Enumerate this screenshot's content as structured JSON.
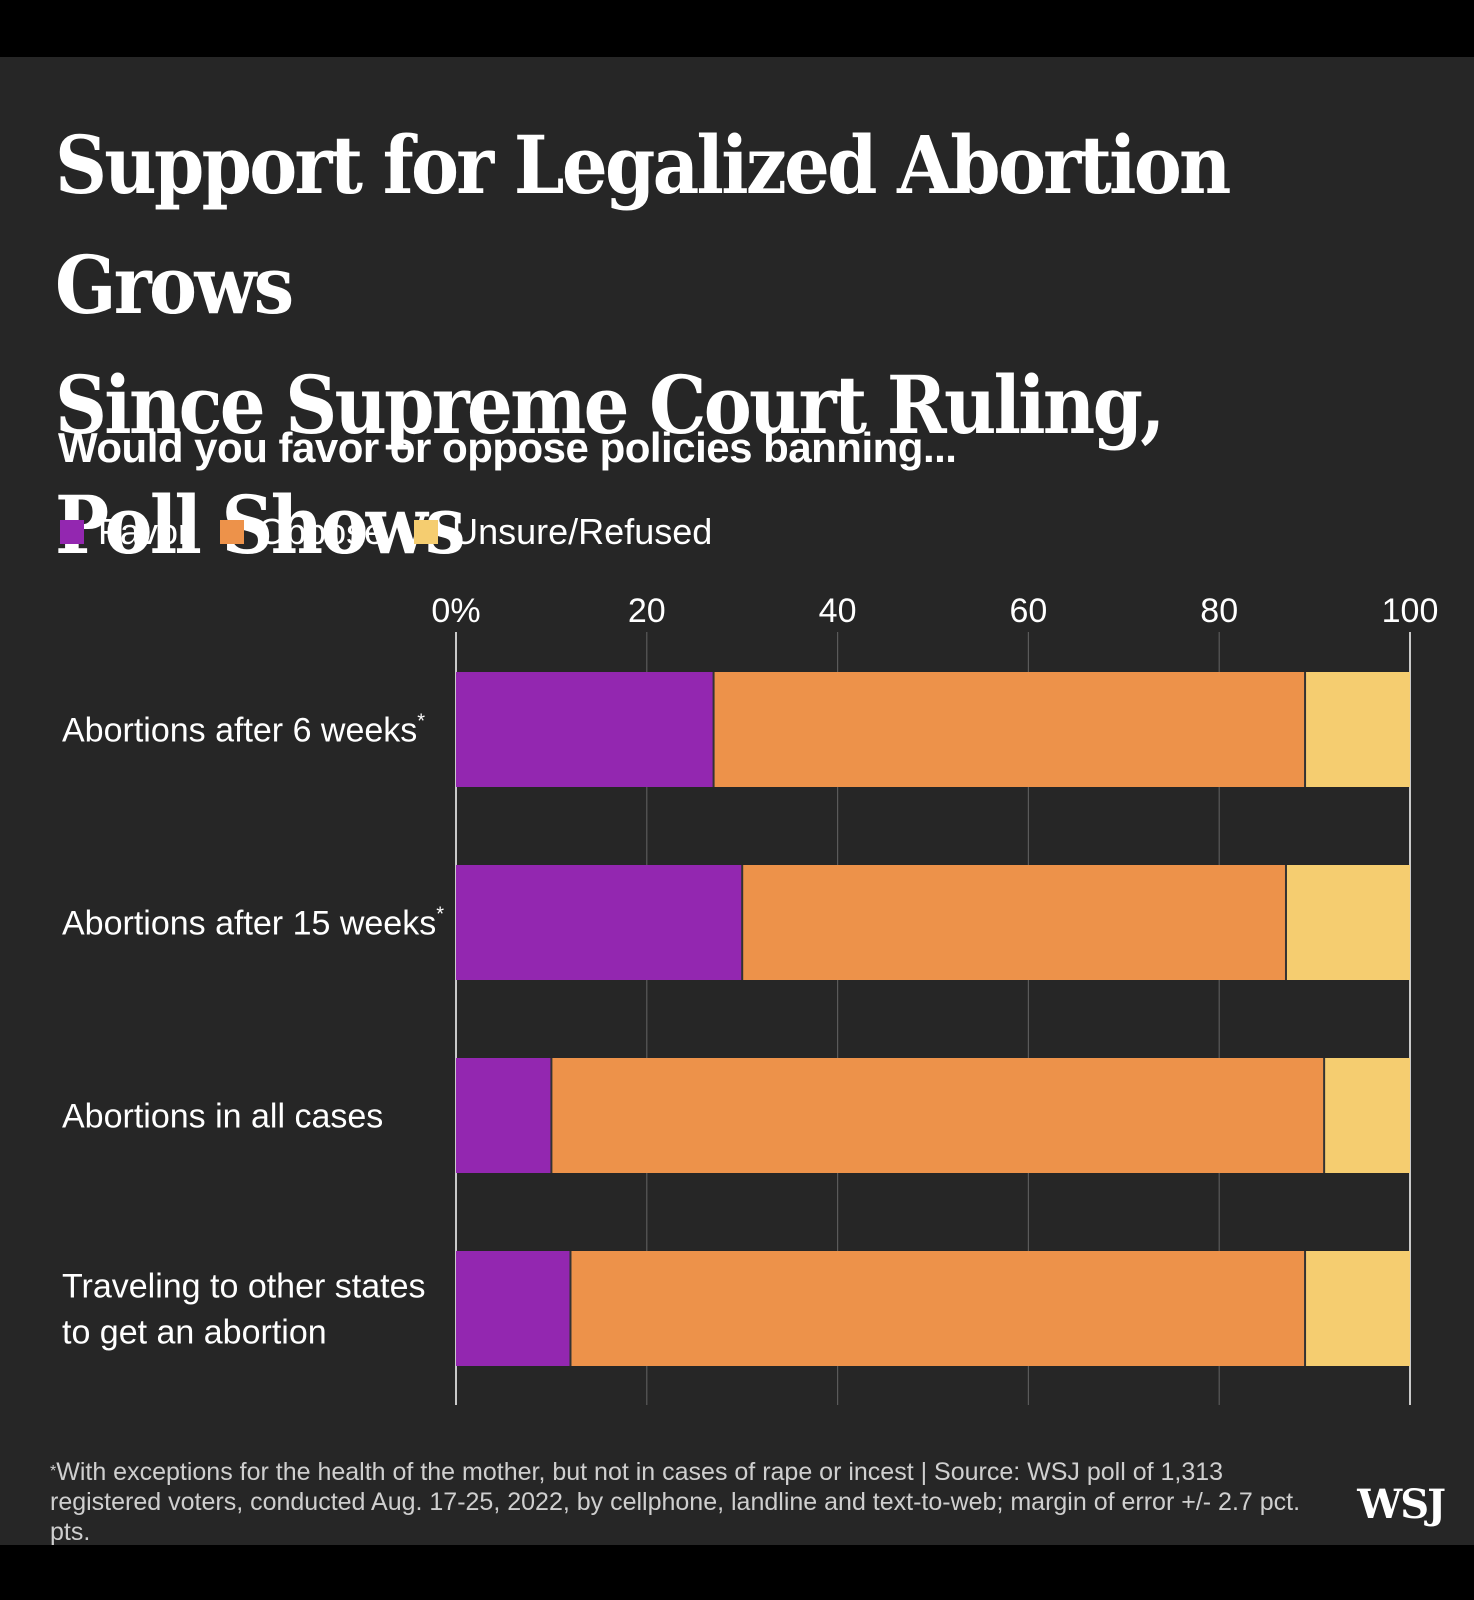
{
  "header": {
    "title_line1": "Support for Legalized Abortion Grows",
    "title_line2": "Since Supreme Court Ruling, Poll Shows",
    "subtitle": "Would you favor or oppose policies banning..."
  },
  "legend": [
    {
      "label": "Favor",
      "color": "#9327b0"
    },
    {
      "label": "Oppose",
      "color": "#ed924a"
    },
    {
      "label": "Unsure/Refused",
      "color": "#f5cd70"
    }
  ],
  "colors": {
    "background": "#262626",
    "gridline": "#5a5a5a",
    "divider": "#333333",
    "text": "#ffffff"
  },
  "chart_data": {
    "type": "bar",
    "orientation": "horizontal",
    "stacked": true,
    "title": "Support for Legalized Abortion Grows Since Supreme Court Ruling, Poll Shows",
    "subtitle": "Would you favor or oppose policies banning...",
    "categories": [
      {
        "lines": [
          "Abortions after 6 weeks"
        ],
        "note": "*"
      },
      {
        "lines": [
          "Abortions after 15 weeks"
        ],
        "note": "*"
      },
      {
        "lines": [
          "Abortions in all cases"
        ],
        "note": ""
      },
      {
        "lines": [
          "Traveling to other states",
          "to get an abortion"
        ],
        "note": ""
      }
    ],
    "series": [
      {
        "name": "Favor",
        "values": [
          27,
          30,
          10,
          12
        ]
      },
      {
        "name": "Oppose",
        "values": [
          62,
          57,
          81,
          77
        ]
      },
      {
        "name": "Unsure/Refused",
        "values": [
          11,
          13,
          9,
          11
        ]
      }
    ],
    "xlim": [
      0,
      100
    ],
    "xticks": [
      {
        "value": 0,
        "label": "0%"
      },
      {
        "value": 20,
        "label": "20"
      },
      {
        "value": 40,
        "label": "40"
      },
      {
        "value": 60,
        "label": "60"
      },
      {
        "value": 80,
        "label": "80"
      },
      {
        "value": 100,
        "label": "100"
      }
    ],
    "grid": true,
    "legend_position": "top-left"
  },
  "footer": {
    "footnote_marker": "*",
    "footnote_text": "With exceptions for the health of the mother, but not in cases of rape or incest | Source: WSJ poll of 1,313 registered voters, conducted Aug. 17-25, 2022, by cellphone, landline and text-to-web; margin of error +/- 2.7 pct. pts.",
    "logo": "WSJ"
  }
}
